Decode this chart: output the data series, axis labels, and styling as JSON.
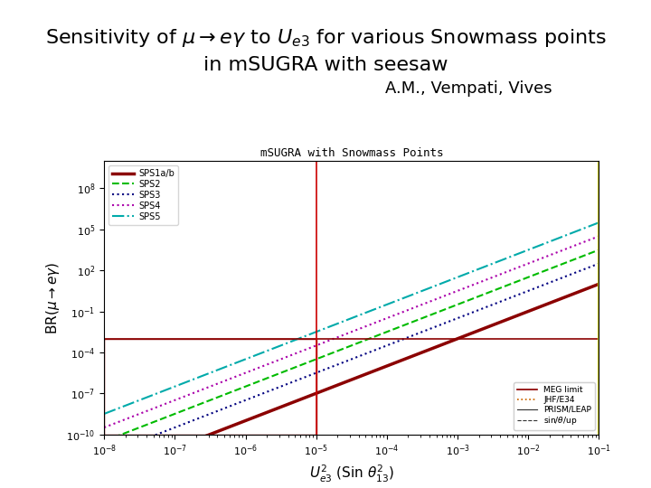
{
  "title_main": "Sensitivity of $\\mu \\rightarrow e\\gamma$ to $U_{e3}$ for various Snowmass points",
  "title_line2": "in mSUGRA with seesaw",
  "attribution": "A.M., Vempati, Vives",
  "plot_title": "mSUGRA with Snowmass Points",
  "xlabel": "$U_{e3}^{2}$ (Sin $\\theta_{13}^{2}$)",
  "ylabel": "BR($\\mu \\rightarrow e\\gamma$)",
  "background_color": "#ffffff",
  "plot_bg": "#ffffff",
  "series": [
    {
      "label": "SPS1a/b",
      "color": "#8B0000",
      "style": "solid",
      "lw": 2.5,
      "slope": 2.0,
      "intercept": 3.0
    },
    {
      "label": "SPS2",
      "color": "#00bb00",
      "style": "dashed",
      "lw": 1.5,
      "slope": 2.0,
      "intercept": 5.5
    },
    {
      "label": "SPS3",
      "color": "#000080",
      "style": "dotted",
      "lw": 1.5,
      "slope": 2.0,
      "intercept": 4.5
    },
    {
      "label": "SPS4",
      "color": "#aa00aa",
      "style": "dotted",
      "lw": 1.5,
      "slope": 2.0,
      "intercept": 6.5
    },
    {
      "label": "SPS5",
      "color": "#00aaaa",
      "style": "dashdot",
      "lw": 1.5,
      "slope": 2.0,
      "intercept": 7.5
    }
  ],
  "hline_y_exp": -3,
  "hline_color": "#8B0000",
  "hline_lw": 1.2,
  "vline1_x_exp": -5,
  "vline1_color": "#cc0000",
  "vline1_lw": 1.2,
  "vline2_x_exp": -1,
  "vline2_color": "#cccc00",
  "vline2_lw": 1.5,
  "xlim_exp": [
    -8,
    -1
  ],
  "ylim_exp": [
    -10,
    10
  ],
  "title_fontsize": 16,
  "attr_fontsize": 13,
  "plot_title_fontsize": 9,
  "axis_label_fontsize": 11,
  "tick_fontsize": 8,
  "legend1_fontsize": 7,
  "legend2_fontsize": 6.5
}
